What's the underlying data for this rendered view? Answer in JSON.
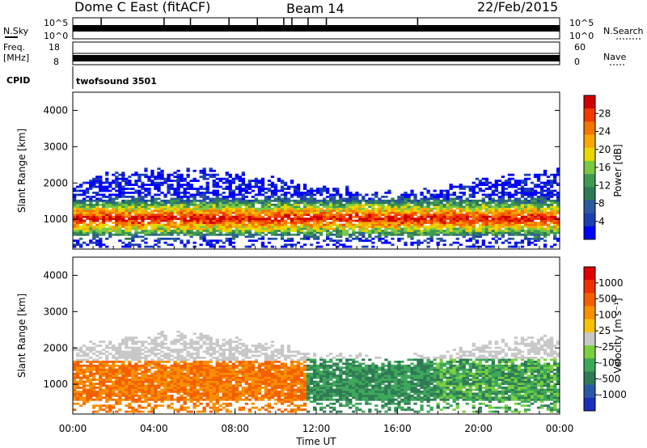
{
  "header": {
    "title": "Dome C East (fitACF)",
    "beam": "Beam 14",
    "date": "22/Feb/2015",
    "cpid_label": "CPID",
    "cpid_value": "twofsound 3501"
  },
  "chart_data": [
    {
      "type": "line",
      "name": "status-noise",
      "left_label": "N.Sky",
      "right_label": "N.Search",
      "left_ticks": [
        "10^5",
        "10^0"
      ],
      "right_ticks": [
        "10^5",
        "10^0"
      ],
      "yscale": "log",
      "ylim": [
        1,
        100000
      ],
      "x": [
        "00:00",
        "24:00"
      ],
      "spike_times_h": [
        1.4,
        4.5,
        5.8,
        7.7,
        9.1,
        10.4,
        10.8,
        11.6,
        12.5,
        17.0
      ]
    },
    {
      "type": "line",
      "name": "status-frequency",
      "left_label": "Freq.",
      "left_units": "[MHz]",
      "right_label": "Nave",
      "left_ticks": [
        "18",
        "8"
      ],
      "right_ticks": [
        "60",
        "0"
      ],
      "ylim_left": [
        8,
        18
      ],
      "ylim_right": [
        0,
        60
      ]
    },
    {
      "type": "heatmap",
      "name": "power",
      "ylabel": "Slant Range [km]",
      "xlabel": "",
      "xlim": [
        0,
        24
      ],
      "ylim": [
        180,
        4500
      ],
      "yticks": [
        1000,
        2000,
        3000,
        4000
      ],
      "colorbar_label": "Power [dB]",
      "colorbar_ticks": [
        "28",
        "24",
        "20",
        "16",
        "12",
        "8",
        "4"
      ],
      "colorscale": [
        "#0000ff",
        "#1a3fb0",
        "#2c5aa0",
        "#2f7a55",
        "#3e9a52",
        "#7ac943",
        "#e8d800",
        "#f9a800",
        "#f47400",
        "#f03a00",
        "#d00000"
      ],
      "grid": false
    },
    {
      "type": "heatmap",
      "name": "velocity",
      "ylabel": "Slant Range [km]",
      "xlabel": "Time UT",
      "xlim": [
        0,
        24
      ],
      "ylim": [
        180,
        4500
      ],
      "yticks": [
        1000,
        2000,
        3000,
        4000
      ],
      "xticks": [
        "00:00",
        "04:00",
        "08:00",
        "12:00",
        "16:00",
        "20:00",
        "00:00"
      ],
      "colorbar_label": "Velocity [m s⁻¹]",
      "colorbar_ticks": [
        "1000",
        "500",
        "100",
        "25",
        "-25",
        "-100",
        "-500",
        "-1000"
      ],
      "colorscale": [
        "#1a2fc0",
        "#2b57a8",
        "#2f7a55",
        "#3ea85a",
        "#7ad040",
        "#c8c8c8",
        "#f9c200",
        "#f79000",
        "#f46000",
        "#f03000",
        "#e00000"
      ],
      "grid": false
    }
  ]
}
